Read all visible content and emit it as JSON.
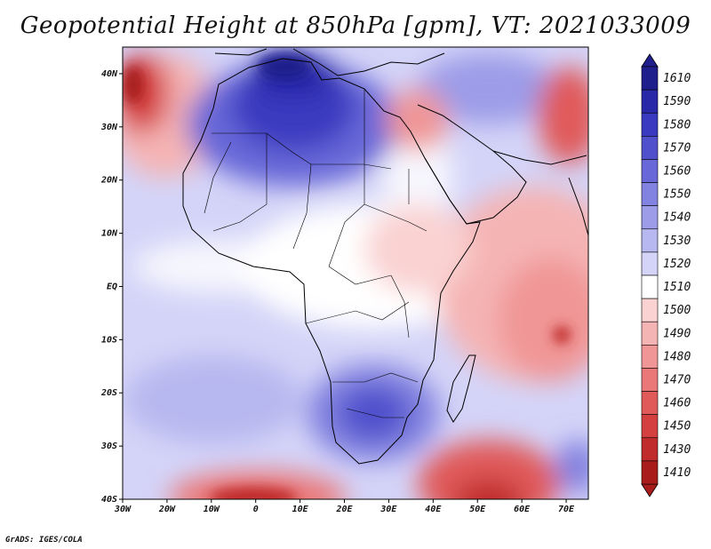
{
  "title": "Geopotential Height at 850hPa [gpm], VT: 2021033009",
  "credit": "GrADS: IGES/COLA",
  "map": {
    "lon_range": [
      -30,
      75
    ],
    "lat_range": [
      -40,
      45
    ],
    "x_ticks": [
      {
        "v": -30,
        "label": "30W"
      },
      {
        "v": -20,
        "label": "20W"
      },
      {
        "v": -10,
        "label": "10W"
      },
      {
        "v": 0,
        "label": "0"
      },
      {
        "v": 10,
        "label": "10E"
      },
      {
        "v": 20,
        "label": "20E"
      },
      {
        "v": 30,
        "label": "30E"
      },
      {
        "v": 40,
        "label": "40E"
      },
      {
        "v": 50,
        "label": "50E"
      },
      {
        "v": 60,
        "label": "60E"
      },
      {
        "v": 70,
        "label": "70E"
      }
    ],
    "y_ticks": [
      {
        "v": 40,
        "label": "40N"
      },
      {
        "v": 30,
        "label": "30N"
      },
      {
        "v": 20,
        "label": "20N"
      },
      {
        "v": 10,
        "label": "10N"
      },
      {
        "v": 0,
        "label": "EQ"
      },
      {
        "v": -10,
        "label": "10S"
      },
      {
        "v": -20,
        "label": "20S"
      },
      {
        "v": -30,
        "label": "30S"
      },
      {
        "v": -40,
        "label": "40S"
      }
    ]
  },
  "colorbar": {
    "levels": [
      {
        "label": "1610",
        "color": "#1e1e8c"
      },
      {
        "label": "1590",
        "color": "#2828a8"
      },
      {
        "label": "1580",
        "color": "#3a3ac0"
      },
      {
        "label": "1570",
        "color": "#5050cc"
      },
      {
        "label": "1560",
        "color": "#6868d8"
      },
      {
        "label": "1550",
        "color": "#8282e0"
      },
      {
        "label": "1540",
        "color": "#9c9ce8"
      },
      {
        "label": "1530",
        "color": "#b8b8f0"
      },
      {
        "label": "1520",
        "color": "#d4d4f8"
      },
      {
        "label": "1510",
        "color": "#ffffff"
      },
      {
        "label": "1500",
        "color": "#fad2d2"
      },
      {
        "label": "1490",
        "color": "#f5b4b4"
      },
      {
        "label": "1480",
        "color": "#f09696"
      },
      {
        "label": "1470",
        "color": "#ea7878"
      },
      {
        "label": "1460",
        "color": "#e05a5a"
      },
      {
        "label": "1450",
        "color": "#d44040"
      },
      {
        "label": "1430",
        "color": "#c02c2c"
      },
      {
        "label": "1410",
        "color": "#a81c1c"
      }
    ]
  }
}
